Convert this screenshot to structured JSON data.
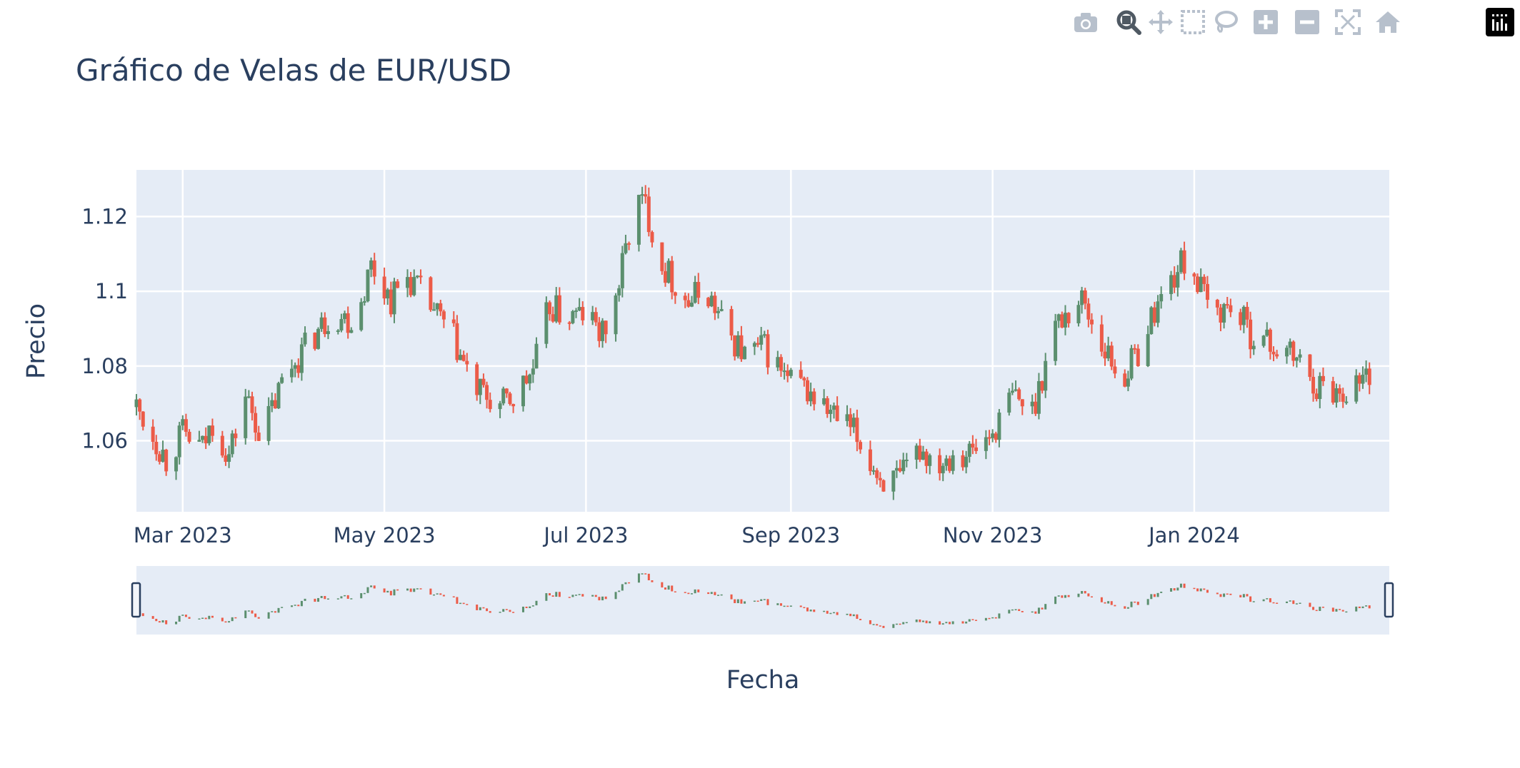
{
  "title": "Gráfico de Velas de EUR/USD",
  "modebar": {
    "buttons": [
      {
        "name": "camera-icon",
        "label": "Download plot as a png"
      },
      {
        "name": "zoom-icon",
        "label": "Zoom"
      },
      {
        "name": "pan-icon",
        "label": "Pan"
      },
      {
        "name": "box-select-icon",
        "label": "Box Select"
      },
      {
        "name": "lasso-select-icon",
        "label": "Lasso Select"
      },
      {
        "name": "zoom-in-icon",
        "label": "Zoom in"
      },
      {
        "name": "zoom-out-icon",
        "label": "Zoom out"
      },
      {
        "name": "autoscale-icon",
        "label": "Autoscale"
      },
      {
        "name": "reset-axes-icon",
        "label": "Reset axes"
      },
      {
        "name": "plotly-logo-icon",
        "label": "Produced with Plotly"
      }
    ],
    "active": "zoom-icon"
  },
  "colors": {
    "increasing": "#5b8f6e",
    "decreasing": "#ec5b48",
    "plot_bg": "#e5ecf6",
    "grid": "#ffffff",
    "text": "#2a3f5f",
    "modebar_icon": "#b7c0cc",
    "modebar_active": "#4f5963"
  },
  "chart_data": {
    "type": "candlestick",
    "title": "Gráfico de Velas de EUR/USD",
    "xlabel": "Fecha",
    "ylabel": "Precio",
    "xlim": [
      "2023-02-15",
      "2024-02-29"
    ],
    "ylim": [
      1.041,
      1.1325
    ],
    "x_ticks": [
      {
        "date": "2023-03-01",
        "label": "Mar 2023"
      },
      {
        "date": "2023-05-01",
        "label": "May 2023"
      },
      {
        "date": "2023-07-01",
        "label": "Jul 2023"
      },
      {
        "date": "2023-09-01",
        "label": "Sep 2023"
      },
      {
        "date": "2023-11-01",
        "label": "Nov 2023"
      },
      {
        "date": "2024-01-01",
        "label": "Jan 2024"
      }
    ],
    "y_ticks": [
      {
        "value": 1.06,
        "label": "1.06"
      },
      {
        "value": 1.08,
        "label": "1.08"
      },
      {
        "value": 1.1,
        "label": "1.1"
      },
      {
        "value": 1.12,
        "label": "1.12"
      }
    ],
    "grid": true,
    "rangeslider": true,
    "price_path": [
      [
        "2023-02-15",
        1.069
      ],
      [
        "2023-02-21",
        1.06
      ],
      [
        "2023-02-24",
        1.055
      ],
      [
        "2023-03-01",
        1.062
      ],
      [
        "2023-03-07",
        1.058
      ],
      [
        "2023-03-10",
        1.065
      ],
      [
        "2023-03-15",
        1.056
      ],
      [
        "2023-03-20",
        1.072
      ],
      [
        "2023-03-25",
        1.061
      ],
      [
        "2023-04-01",
        1.078
      ],
      [
        "2023-04-08",
        1.086
      ],
      [
        "2023-04-15",
        1.094
      ],
      [
        "2023-04-22",
        1.092
      ],
      [
        "2023-04-27",
        1.107
      ],
      [
        "2023-05-03",
        1.098
      ],
      [
        "2023-05-08",
        1.104
      ],
      [
        "2023-05-15",
        1.096
      ],
      [
        "2023-05-22",
        1.087
      ],
      [
        "2023-05-28",
        1.074
      ],
      [
        "2023-06-05",
        1.069
      ],
      [
        "2023-06-10",
        1.072
      ],
      [
        "2023-06-15",
        1.079
      ],
      [
        "2023-06-20",
        1.096
      ],
      [
        "2023-06-25",
        1.093
      ],
      [
        "2023-07-01",
        1.094
      ],
      [
        "2023-07-06",
        1.088
      ],
      [
        "2023-07-10",
        1.098
      ],
      [
        "2023-07-16",
        1.124
      ],
      [
        "2023-07-19",
        1.123
      ],
      [
        "2023-07-24",
        1.107
      ],
      [
        "2023-08-01",
        1.097
      ],
      [
        "2023-08-06",
        1.101
      ],
      [
        "2023-08-12",
        1.09
      ],
      [
        "2023-08-18",
        1.083
      ],
      [
        "2023-08-24",
        1.085
      ],
      [
        "2023-08-31",
        1.076
      ],
      [
        "2023-09-05",
        1.074
      ],
      [
        "2023-09-12",
        1.068
      ],
      [
        "2023-09-20",
        1.062
      ],
      [
        "2023-09-28",
        1.05
      ],
      [
        "2023-10-04",
        1.049
      ],
      [
        "2023-10-10",
        1.058
      ],
      [
        "2023-10-15",
        1.054
      ],
      [
        "2023-10-20",
        1.057
      ],
      [
        "2023-10-26",
        1.057
      ],
      [
        "2023-11-01",
        1.062
      ],
      [
        "2023-11-07",
        1.072
      ],
      [
        "2023-11-13",
        1.068
      ],
      [
        "2023-11-20",
        1.091
      ],
      [
        "2023-11-28",
        1.098
      ],
      [
        "2023-12-03",
        1.088
      ],
      [
        "2023-12-10",
        1.076
      ],
      [
        "2023-12-15",
        1.084
      ],
      [
        "2023-12-20",
        1.095
      ],
      [
        "2023-12-27",
        1.106
      ],
      [
        "2023-12-30",
        1.109
      ],
      [
        "2024-01-06",
        1.094
      ],
      [
        "2024-01-12",
        1.096
      ],
      [
        "2024-01-18",
        1.089
      ],
      [
        "2024-01-25",
        1.085
      ],
      [
        "2024-02-01",
        1.082
      ],
      [
        "2024-02-07",
        1.075
      ],
      [
        "2024-02-14",
        1.073
      ],
      [
        "2024-02-20",
        1.076
      ],
      [
        "2024-02-23",
        1.078
      ]
    ]
  }
}
